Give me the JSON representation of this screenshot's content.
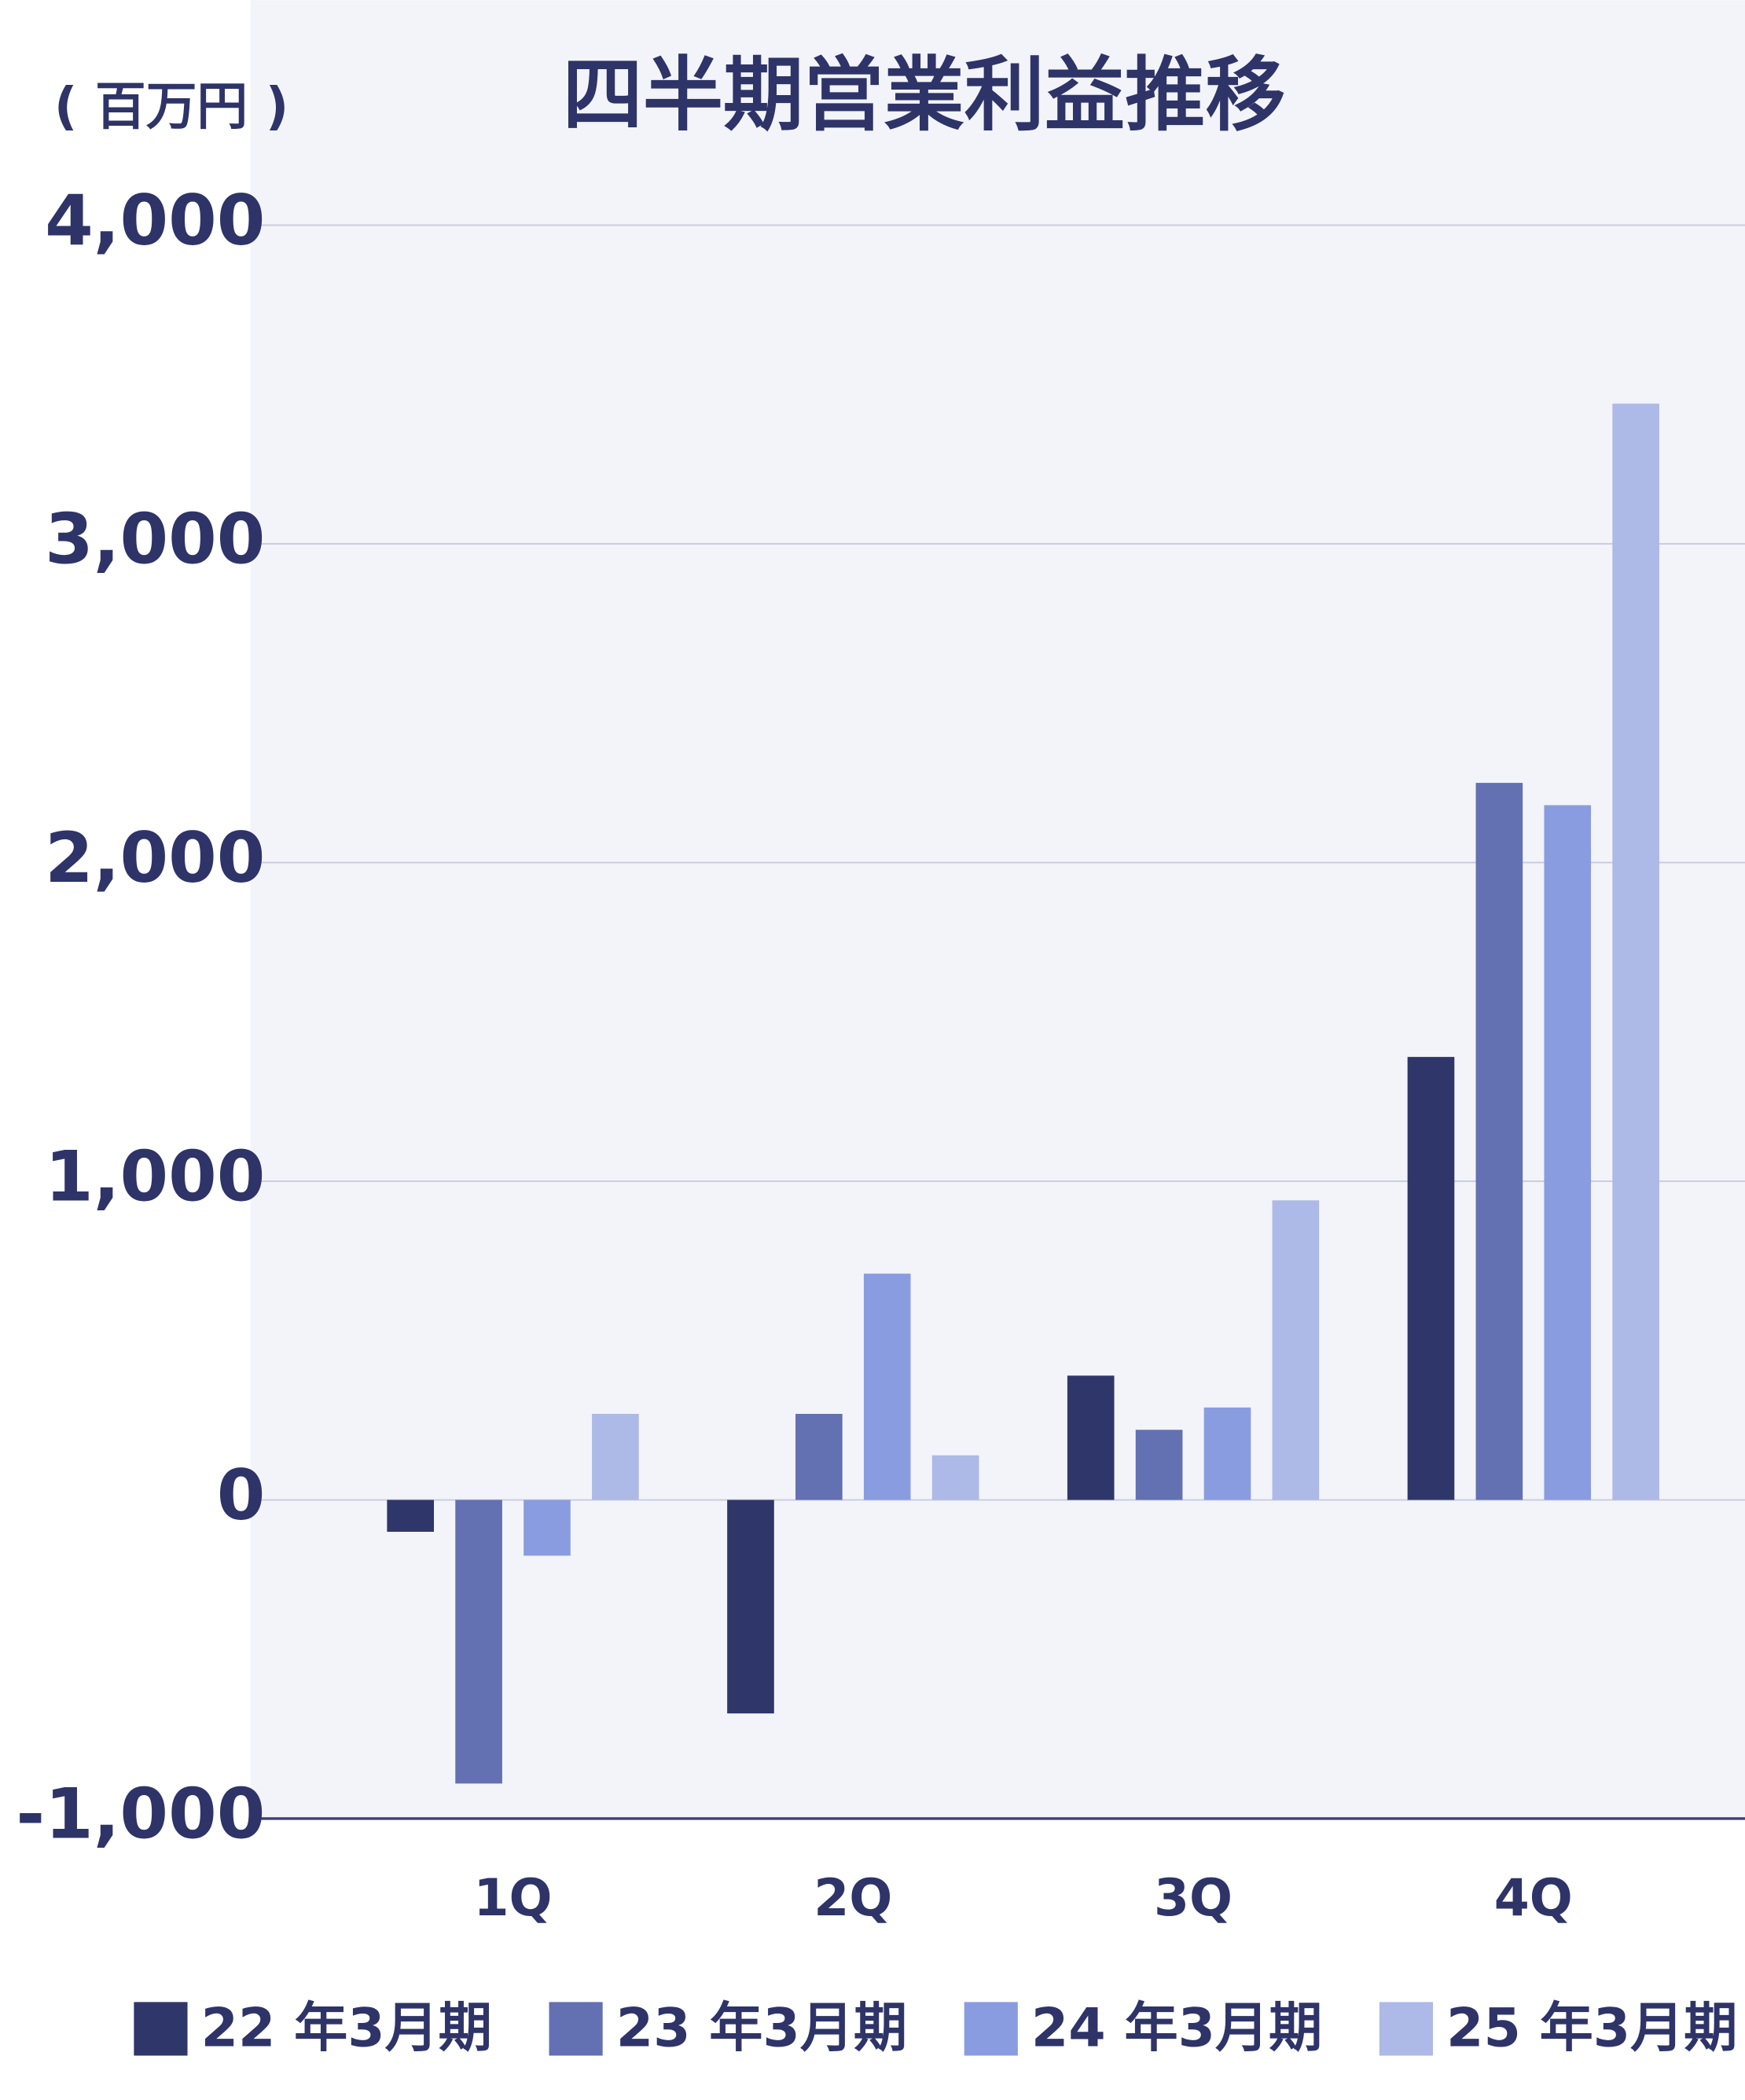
{
  "chart_data": {
    "type": "bar",
    "title": "四半期営業利益推移",
    "y_axis_label": "( 百万円 )",
    "categories": [
      "1Q",
      "2Q",
      "3Q",
      "4Q"
    ],
    "series": [
      {
        "name": "22 年3月期",
        "color": "#2f3669",
        "values": [
          -100,
          -670,
          390,
          1390
        ]
      },
      {
        "name": "23 年3月期",
        "color": "#6370b2",
        "values": [
          -890,
          270,
          220,
          2250
        ]
      },
      {
        "name": "24 年3月期",
        "color": "#8a9ce0",
        "values": [
          -175,
          710,
          290,
          2180
        ]
      },
      {
        "name": "25 年3月期",
        "color": "#adb9e6",
        "values": [
          270,
          140,
          940,
          3440
        ]
      }
    ],
    "ylim": [
      -1000,
      4000
    ],
    "yticks": [
      {
        "value": -1000,
        "label": "-1,000"
      },
      0,
      {
        "value": 1000,
        "label": "1,000"
      },
      {
        "value": 2000,
        "label": "2,000"
      },
      {
        "value": 3000,
        "label": "3,000"
      },
      {
        "value": 4000,
        "label": "4,000"
      }
    ],
    "grid": true
  }
}
